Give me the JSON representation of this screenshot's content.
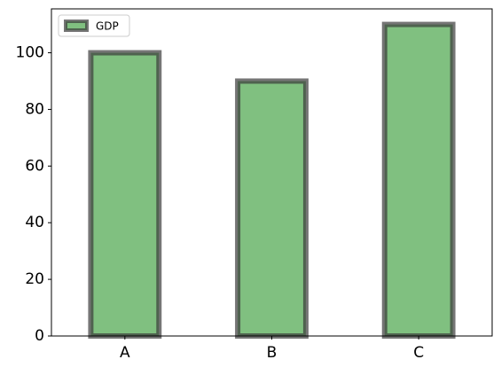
{
  "chart_data": {
    "type": "bar",
    "categories": [
      "A",
      "B",
      "C"
    ],
    "series": [
      {
        "name": "GDP",
        "color": "#80c080",
        "edgecolor": "#3a3a3a",
        "values": [
          100,
          90,
          110
        ]
      }
    ],
    "ylim": [
      0,
      115.5
    ],
    "yticks": [
      0,
      20,
      40,
      60,
      80,
      100
    ],
    "legend": "upper left"
  }
}
